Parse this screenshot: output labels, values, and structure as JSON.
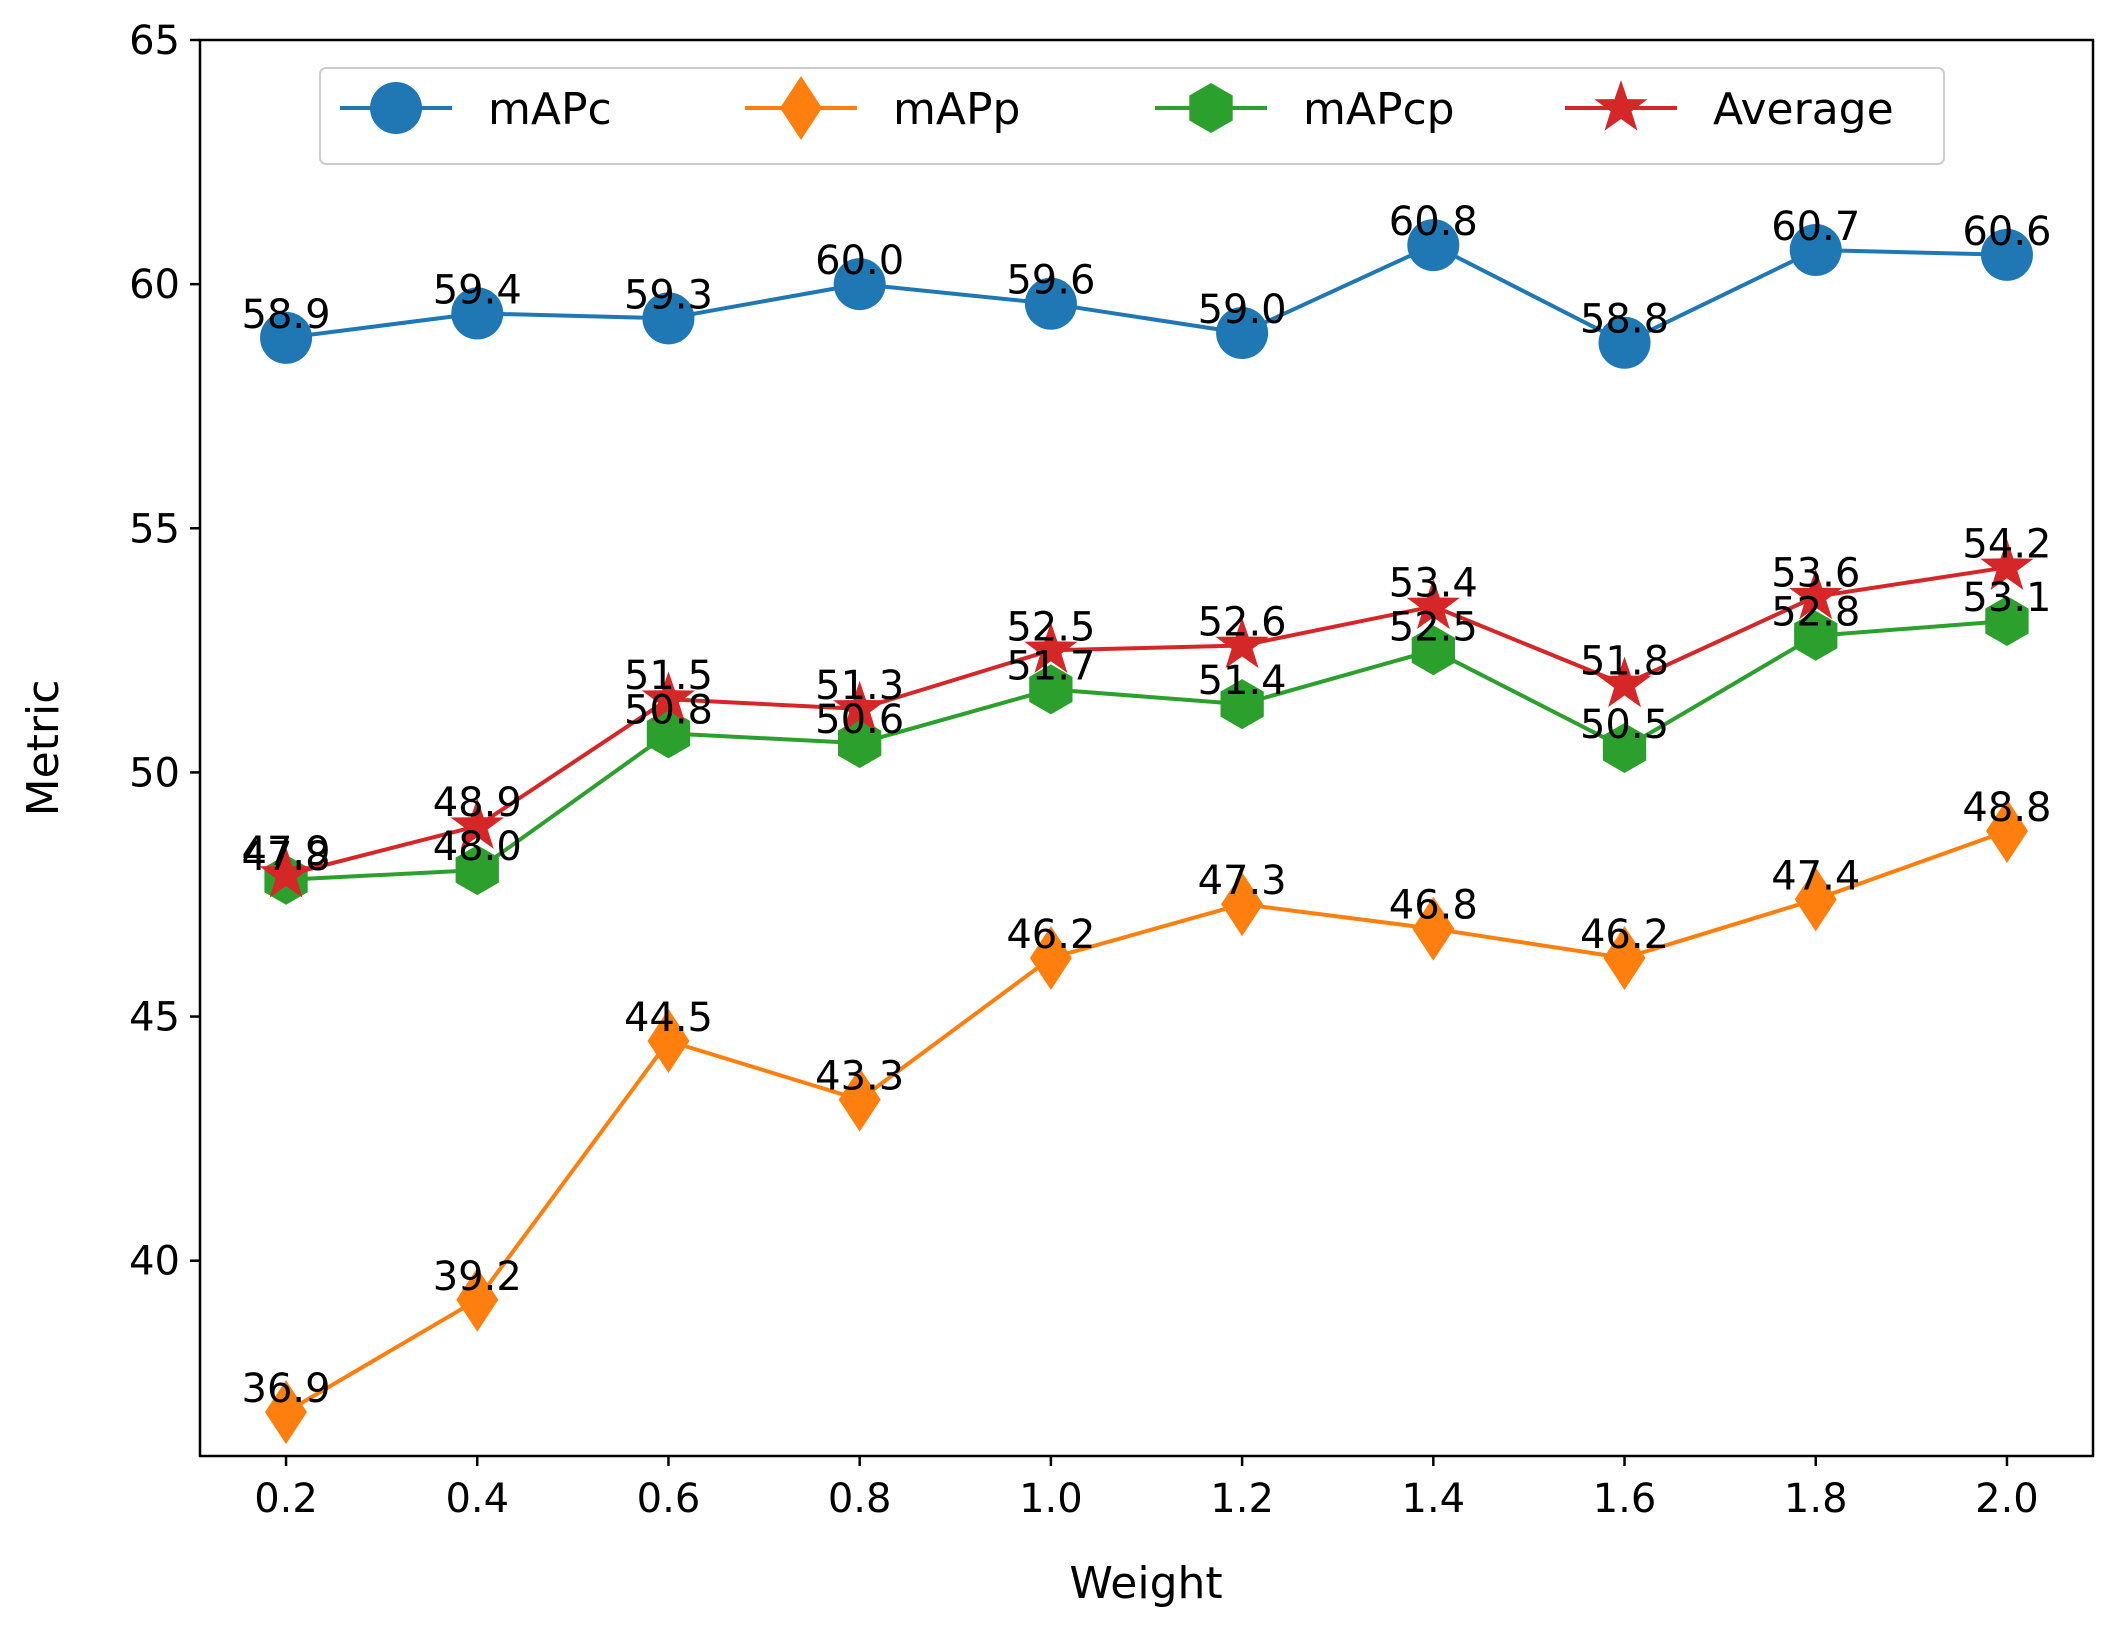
{
  "chart_data": {
    "type": "line",
    "title": "",
    "xlabel": "Weight",
    "ylabel": "Metric",
    "x": [
      0.2,
      0.4,
      0.6,
      0.8,
      1.0,
      1.2,
      1.4,
      1.6,
      1.8,
      2.0
    ],
    "x_tick_labels": [
      "0.2",
      "0.4",
      "0.6",
      "0.8",
      "1.0",
      "1.2",
      "1.4",
      "1.6",
      "1.8",
      "2.0"
    ],
    "xlim": [
      0.11,
      2.09
    ],
    "ylim": [
      36,
      65
    ],
    "y_ticks": [
      40,
      45,
      50,
      55,
      60,
      65
    ],
    "y_tick_labels": [
      "40",
      "45",
      "50",
      "55",
      "60",
      "65"
    ],
    "grid": false,
    "legend": {
      "placement": "top-center",
      "columns": 4
    },
    "series": [
      {
        "name": "mAPc",
        "color": "#1f77b4",
        "marker": "circle",
        "values": [
          58.9,
          59.4,
          59.3,
          60.0,
          59.6,
          59.0,
          60.8,
          58.8,
          60.7,
          60.6
        ],
        "labels": [
          "58.9",
          "59.4",
          "59.3",
          "60.0",
          "59.6",
          "59.0",
          "60.8",
          "58.8",
          "60.7",
          "60.6"
        ]
      },
      {
        "name": "mAPp",
        "color": "#ff7f0e",
        "marker": "diamond",
        "values": [
          36.9,
          39.2,
          44.5,
          43.3,
          46.2,
          47.3,
          46.8,
          46.2,
          47.4,
          48.8
        ],
        "labels": [
          "36.9",
          "39.2",
          "44.5",
          "43.3",
          "46.2",
          "47.3",
          "46.8",
          "46.2",
          "47.4",
          "48.8"
        ]
      },
      {
        "name": "mAPcp",
        "color": "#2ca02c",
        "marker": "hexagon",
        "values": [
          47.8,
          48.0,
          50.8,
          50.6,
          51.7,
          51.4,
          52.5,
          50.5,
          52.8,
          53.1
        ],
        "labels": [
          "47.8",
          "48.0",
          "50.8",
          "50.6",
          "51.7",
          "51.4",
          "52.5",
          "50.5",
          "52.8",
          "53.1"
        ]
      },
      {
        "name": "Average",
        "color": "#d62728",
        "marker": "star",
        "values": [
          47.9,
          48.9,
          51.5,
          51.3,
          52.5,
          52.6,
          53.4,
          51.8,
          53.6,
          54.2
        ],
        "labels": [
          "47.9",
          "48.9",
          "51.5",
          "51.3",
          "52.5",
          "52.6",
          "53.4",
          "51.8",
          "53.6",
          "54.2"
        ]
      }
    ]
  }
}
